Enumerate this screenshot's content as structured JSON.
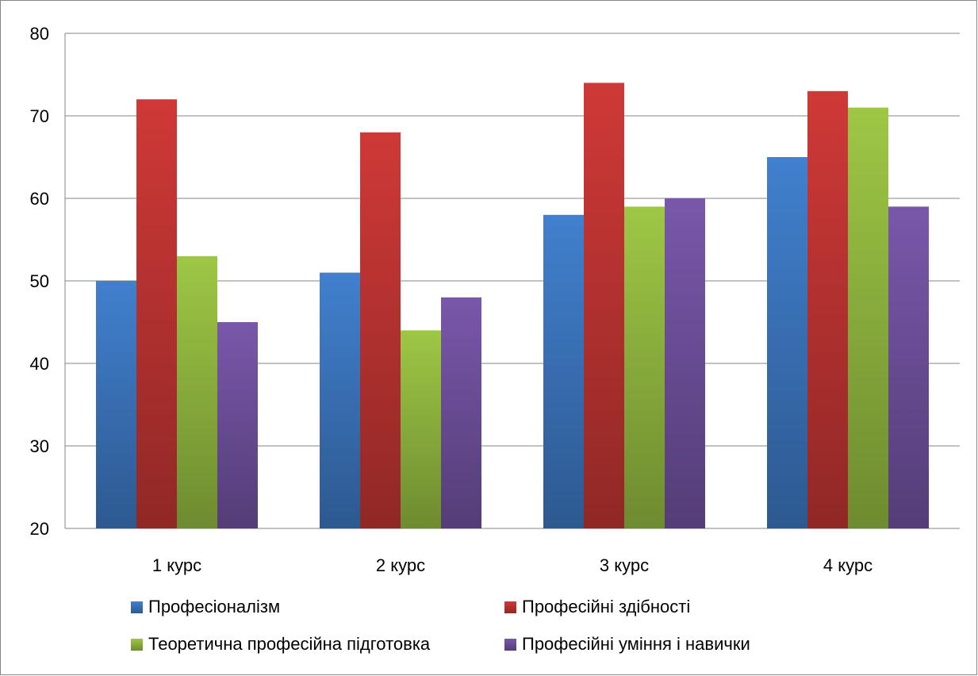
{
  "chart_data": {
    "type": "bar",
    "categories": [
      "1 курс",
      "2 курс",
      "3 курс",
      "4 курс"
    ],
    "series": [
      {
        "name": "Професіоналізм",
        "values": [
          50,
          51,
          58,
          65
        ],
        "color": "#3a72b8"
      },
      {
        "name": "Професійні здібності",
        "values": [
          72,
          68,
          74,
          73
        ],
        "color": "#b93331"
      },
      {
        "name": "Теоретична професійна підготовка",
        "values": [
          53,
          44,
          59,
          71
        ],
        "color": "#8db23e"
      },
      {
        "name": "Професійні уміння і навички",
        "values": [
          45,
          48,
          60,
          59
        ],
        "color": "#6c4e98"
      }
    ],
    "ylim": [
      20,
      80
    ],
    "yticks": [
      "20",
      "30",
      "40",
      "50",
      "60",
      "70",
      "80"
    ],
    "grid": true,
    "legend": "bottom"
  }
}
